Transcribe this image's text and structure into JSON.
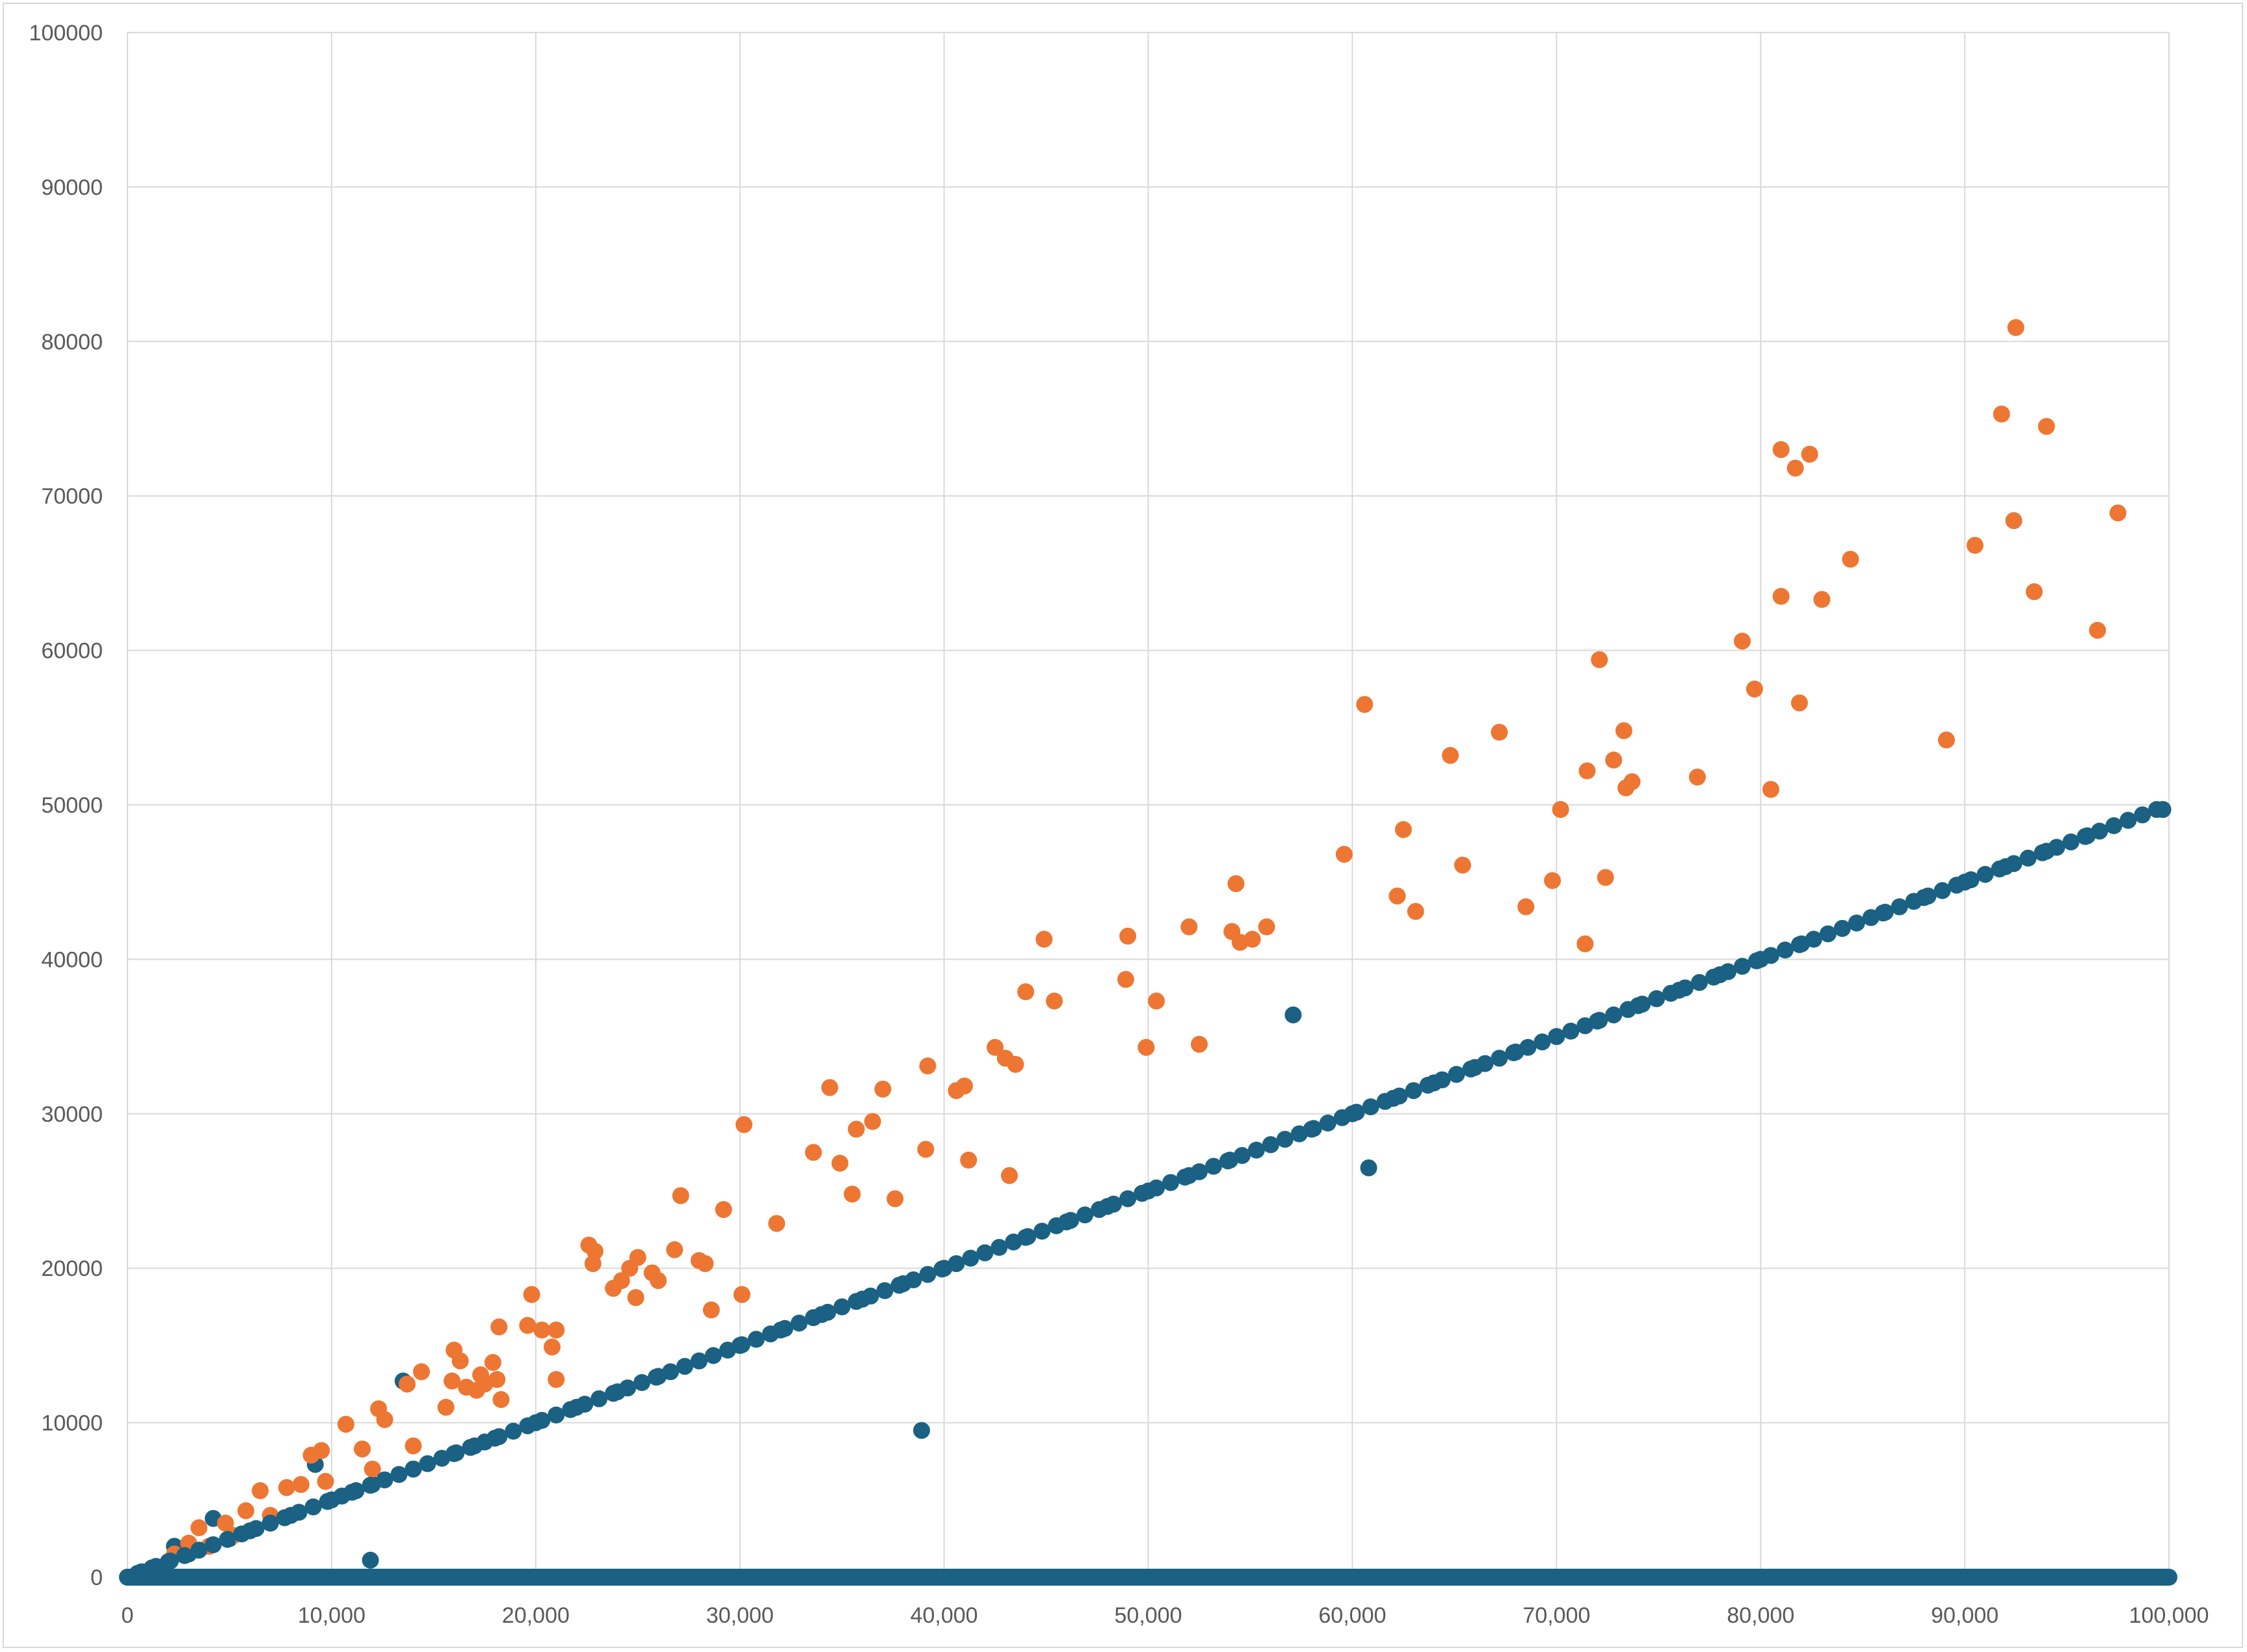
{
  "chart_data": {
    "type": "scatter",
    "title": "",
    "xlabel": "",
    "ylabel": "",
    "xlim": [
      0,
      100000
    ],
    "ylim": [
      0,
      100000
    ],
    "grid": true,
    "legend": "none",
    "x_ticks": [
      0,
      10000,
      20000,
      30000,
      40000,
      50000,
      60000,
      70000,
      80000,
      90000,
      100000
    ],
    "x_tick_labels": [
      "0",
      "10,000",
      "20,000",
      "30,000",
      "40,000",
      "50,000",
      "60,000",
      "70,000",
      "80,000",
      "90,000",
      "100,000"
    ],
    "y_ticks": [
      0,
      10000,
      20000,
      30000,
      40000,
      50000,
      60000,
      70000,
      80000,
      90000,
      100000
    ],
    "y_tick_labels": [
      "0",
      "10000",
      "20000",
      "30000",
      "40000",
      "50000",
      "60000",
      "70000",
      "80000",
      "90000",
      "100000"
    ],
    "series": [
      {
        "color": "#1a6183",
        "points": [
          [
            500,
            250
          ],
          [
            1200,
            600
          ],
          [
            2000,
            1000
          ],
          [
            2300,
            2000
          ],
          [
            3000,
            1500
          ],
          [
            4000,
            2000
          ],
          [
            4200,
            3800
          ],
          [
            5000,
            2500
          ],
          [
            6000,
            3000
          ],
          [
            7000,
            3500
          ],
          [
            8000,
            4000
          ],
          [
            9200,
            7300
          ],
          [
            10000,
            5000
          ],
          [
            11000,
            5500
          ],
          [
            11900,
            1100
          ],
          [
            12000,
            6000
          ],
          [
            13500,
            12700
          ],
          [
            14000,
            7000
          ],
          [
            16000,
            8000
          ],
          [
            17000,
            8500
          ],
          [
            18000,
            9000
          ],
          [
            20000,
            10000
          ],
          [
            22000,
            11000
          ],
          [
            24000,
            12000
          ],
          [
            26000,
            13000
          ],
          [
            28000,
            14000
          ],
          [
            30000,
            15000
          ],
          [
            32000,
            16000
          ],
          [
            34000,
            17000
          ],
          [
            36000,
            18000
          ],
          [
            38000,
            19000
          ],
          [
            38900,
            9500
          ],
          [
            40000,
            20000
          ],
          [
            42000,
            21000
          ],
          [
            44000,
            22000
          ],
          [
            46000,
            23000
          ],
          [
            48000,
            24000
          ],
          [
            50000,
            25000
          ],
          [
            52000,
            26000
          ],
          [
            54000,
            27000
          ],
          [
            56000,
            28000
          ],
          [
            57100,
            36400
          ],
          [
            58000,
            29000
          ],
          [
            60000,
            30000
          ],
          [
            60800,
            26500
          ],
          [
            62000,
            31000
          ],
          [
            64000,
            32000
          ],
          [
            66000,
            33000
          ],
          [
            68000,
            34000
          ],
          [
            70000,
            35000
          ],
          [
            72000,
            36000
          ],
          [
            74000,
            37000
          ],
          [
            76000,
            38000
          ],
          [
            78000,
            39000
          ],
          [
            80000,
            40000
          ],
          [
            82000,
            41000
          ],
          [
            84000,
            42000
          ],
          [
            86000,
            43000
          ],
          [
            88000,
            44000
          ],
          [
            90000,
            45000
          ],
          [
            92000,
            46000
          ],
          [
            94000,
            47000
          ],
          [
            96000,
            48000
          ],
          [
            98000,
            49000
          ],
          [
            99700,
            49700
          ]
        ]
      },
      {
        "color": "#ed7633",
        "points": [
          [
            2300,
            1500
          ],
          [
            3000,
            2200
          ],
          [
            3500,
            3200
          ],
          [
            4000,
            2000
          ],
          [
            4800,
            3500
          ],
          [
            5200,
            2700
          ],
          [
            5800,
            4300
          ],
          [
            6500,
            5600
          ],
          [
            7000,
            4000
          ],
          [
            7800,
            5800
          ],
          [
            8500,
            6000
          ],
          [
            9000,
            7900
          ],
          [
            9500,
            8200
          ],
          [
            9700,
            6200
          ],
          [
            10700,
            9900
          ],
          [
            11500,
            8300
          ],
          [
            12000,
            7000
          ],
          [
            12300,
            10900
          ],
          [
            12600,
            10200
          ],
          [
            13700,
            12500
          ],
          [
            14000,
            8500
          ],
          [
            14400,
            13300
          ],
          [
            15600,
            11000
          ],
          [
            15900,
            12700
          ],
          [
            16000,
            14700
          ],
          [
            16300,
            14000
          ],
          [
            16600,
            12300
          ],
          [
            17100,
            12100
          ],
          [
            17300,
            13100
          ],
          [
            17500,
            12500
          ],
          [
            17900,
            13900
          ],
          [
            18100,
            12800
          ],
          [
            18200,
            16200
          ],
          [
            18300,
            11500
          ],
          [
            19600,
            16300
          ],
          [
            19800,
            18300
          ],
          [
            20300,
            16000
          ],
          [
            20800,
            14900
          ],
          [
            21000,
            12800
          ],
          [
            21000,
            16000
          ],
          [
            22600,
            21500
          ],
          [
            22800,
            20300
          ],
          [
            22900,
            21100
          ],
          [
            23800,
            18700
          ],
          [
            24200,
            19200
          ],
          [
            24600,
            20000
          ],
          [
            24900,
            18100
          ],
          [
            25000,
            20700
          ],
          [
            25700,
            19700
          ],
          [
            26000,
            19200
          ],
          [
            26800,
            21200
          ],
          [
            27100,
            24700
          ],
          [
            28000,
            20500
          ],
          [
            28300,
            20300
          ],
          [
            28600,
            17300
          ],
          [
            29200,
            23800
          ],
          [
            30100,
            18300
          ],
          [
            30200,
            29300
          ],
          [
            31800,
            22900
          ],
          [
            33600,
            27500
          ],
          [
            34400,
            31700
          ],
          [
            34900,
            26800
          ],
          [
            35500,
            24800
          ],
          [
            35700,
            29000
          ],
          [
            36500,
            29500
          ],
          [
            37000,
            31600
          ],
          [
            37600,
            24500
          ],
          [
            39100,
            27700
          ],
          [
            39200,
            33100
          ],
          [
            40600,
            31500
          ],
          [
            41000,
            31800
          ],
          [
            41200,
            27000
          ],
          [
            42500,
            34300
          ],
          [
            43000,
            33600
          ],
          [
            43200,
            26000
          ],
          [
            43500,
            33200
          ],
          [
            44000,
            37900
          ],
          [
            44900,
            41300
          ],
          [
            45400,
            37300
          ],
          [
            48900,
            38700
          ],
          [
            49000,
            41500
          ],
          [
            49900,
            34300
          ],
          [
            50400,
            37300
          ],
          [
            52000,
            42100
          ],
          [
            52500,
            34500
          ],
          [
            54100,
            41800
          ],
          [
            54300,
            44900
          ],
          [
            54500,
            41100
          ],
          [
            55100,
            41300
          ],
          [
            55800,
            42100
          ],
          [
            59600,
            46800
          ],
          [
            60600,
            56500
          ],
          [
            62200,
            44100
          ],
          [
            62500,
            48400
          ],
          [
            63100,
            43100
          ],
          [
            64800,
            53200
          ],
          [
            65400,
            46100
          ],
          [
            67200,
            54700
          ],
          [
            68500,
            43400
          ],
          [
            69800,
            45100
          ],
          [
            70200,
            49700
          ],
          [
            71400,
            41000
          ],
          [
            71500,
            52200
          ],
          [
            72100,
            59400
          ],
          [
            72400,
            45300
          ],
          [
            72800,
            52900
          ],
          [
            73300,
            54800
          ],
          [
            73400,
            51100
          ],
          [
            73700,
            51500
          ],
          [
            76900,
            51800
          ],
          [
            79100,
            60600
          ],
          [
            79700,
            57500
          ],
          [
            80500,
            51000
          ],
          [
            81000,
            73000
          ],
          [
            81000,
            63500
          ],
          [
            81700,
            71800
          ],
          [
            81900,
            56600
          ],
          [
            82400,
            72700
          ],
          [
            83000,
            63300
          ],
          [
            84400,
            65900
          ],
          [
            89100,
            54200
          ],
          [
            90500,
            66800
          ],
          [
            91800,
            75300
          ],
          [
            92400,
            68400
          ],
          [
            92500,
            80900
          ],
          [
            93400,
            63800
          ],
          [
            94000,
            74500
          ],
          [
            96500,
            61300
          ],
          [
            97500,
            68900
          ]
        ]
      }
    ],
    "baseline_series": {
      "color": "#1a6183",
      "y": 0,
      "x_range": [
        0,
        100000
      ]
    }
  }
}
